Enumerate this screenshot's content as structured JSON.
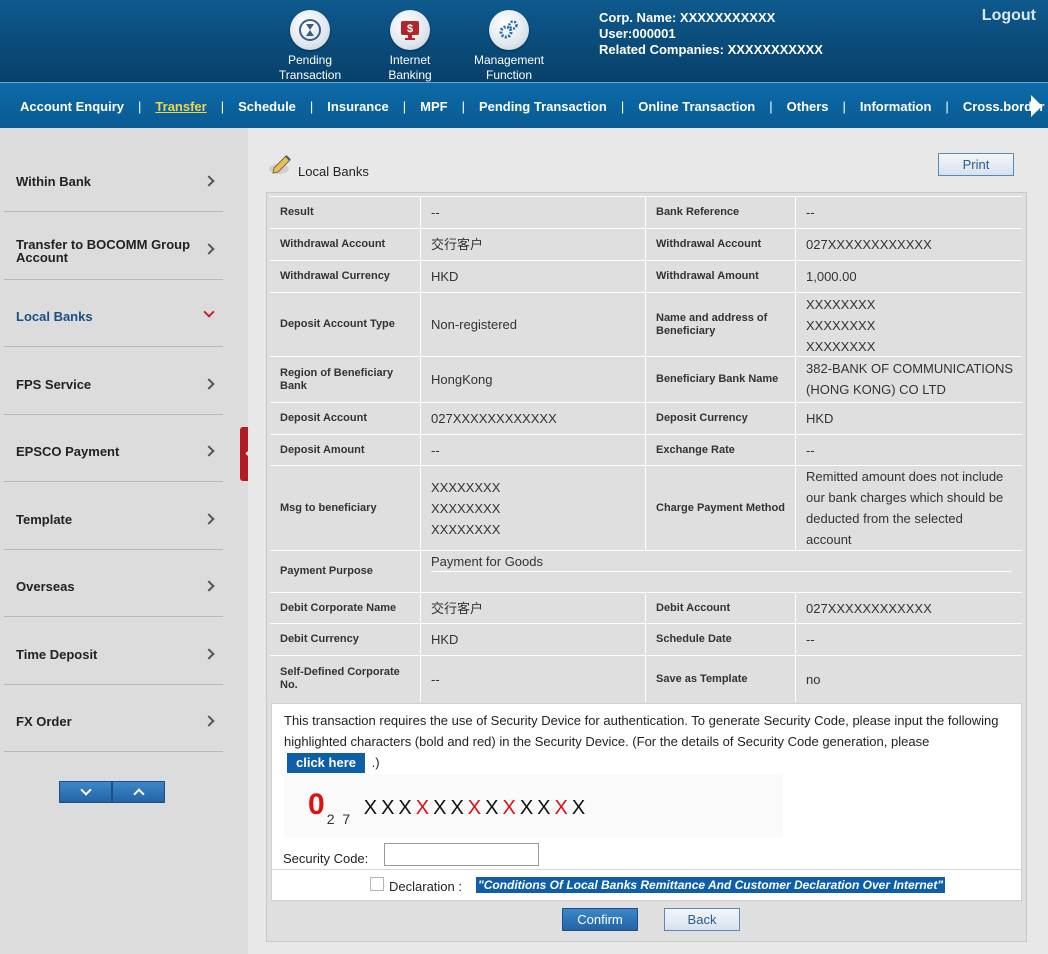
{
  "header": {
    "icons": [
      {
        "label_1": "Pending",
        "label_2": "Transaction",
        "icon": "hourglass-icon"
      },
      {
        "label_1": "Internet",
        "label_2": "Banking",
        "icon": "monitor-dollar-icon"
      },
      {
        "label_1": "Management",
        "label_2": "Function",
        "icon": "gears-icon"
      }
    ],
    "corp_name": "Corp. Name: XXXXXXXXXXX",
    "user": "User:000001",
    "related": "Related Companies: XXXXXXXXXXX",
    "logout": "Logout"
  },
  "nav": {
    "items": [
      "Account Enquiry",
      "Transfer",
      "Schedule",
      "Insurance",
      "MPF",
      "Pending Transaction",
      "Online Transaction",
      "Others",
      "Information",
      "Cross.border Acc"
    ],
    "active_index": 1
  },
  "sidebar": {
    "items": [
      "Within Bank",
      "Transfer to BOCOMM Group Account",
      "Local Banks",
      "FPS Service",
      "EPSCO Payment",
      "Template",
      "Overseas",
      "Time Deposit",
      "FX Order"
    ],
    "active_index": 2
  },
  "page": {
    "title": "Local Banks",
    "print": "Print"
  },
  "details": {
    "result_label": "Result",
    "result": "--",
    "bank_ref_label": "Bank Reference",
    "bank_ref": "--",
    "wd_account_label": "Withdrawal Account",
    "wd_account_name": "交行客户",
    "wd_account_label2": "Withdrawal Account",
    "wd_account_no": "027XXXXXXXXXXXX",
    "wd_currency_label": "Withdrawal Currency",
    "wd_currency": "HKD",
    "wd_amount_label": "Withdrawal Amount",
    "wd_amount": "1,000.00",
    "dep_type_label": "Deposit Account Type",
    "dep_type": "Non-registered",
    "beneficiary_label": "Name and address of Beneficiary",
    "beneficiary_lines": [
      "XXXXXXXX",
      "XXXXXXXX",
      "XXXXXXXX"
    ],
    "region_label": "Region of Beneficiary Bank",
    "region": "HongKong",
    "bene_bank_label": "Beneficiary Bank Name",
    "bene_bank_1": "382-BANK OF COMMUNICATIONS",
    "bene_bank_2": "(HONG KONG) CO LTD",
    "dep_account_label": "Deposit Account",
    "dep_account": "027XXXXXXXXXXXX",
    "dep_currency_label": "Deposit Currency",
    "dep_currency": "HKD",
    "dep_amount_label": "Deposit Amount",
    "dep_amount": "--",
    "fx_rate_label": "Exchange Rate",
    "fx_rate": "--",
    "msg_label": "Msg to beneficiary",
    "msg_lines": [
      "XXXXXXXX",
      "XXXXXXXX",
      "XXXXXXXX"
    ],
    "charge_label": "Charge Payment Method",
    "charge_lines": [
      "Remitted amount does not include",
      "our bank charges which should be",
      "deducted from the selected",
      "account"
    ],
    "purpose_label": "Payment Purpose",
    "purpose": "Payment for Goods",
    "debit_name_label": "Debit Corporate Name",
    "debit_name": "交行客户",
    "debit_account_label": "Debit Account",
    "debit_account": "027XXXXXXXXXXXX",
    "debit_currency_label": "Debit Currency",
    "debit_currency": "HKD",
    "schedule_label": "Schedule Date",
    "schedule": "--",
    "self_defined_label": "Self-Defined Corporate No.",
    "self_defined": "--",
    "save_template_label": "Save as Template",
    "save_template": "no"
  },
  "security": {
    "text_1": "This transaction requires the use of Security Device for authentication. To generate Security Code, please input the following highlighted characters (bold and red) in the Security Device. (For the details of Security Code generation, please",
    "click_here": "click here",
    "text_2": ".)",
    "code_big": "0",
    "code_sub": "2 7",
    "code_chars": [
      "X",
      "X",
      "X",
      "X",
      "X",
      "X",
      "X",
      "X",
      "X",
      "X",
      "X",
      "X",
      "X"
    ],
    "code_red": [
      false,
      false,
      false,
      true,
      false,
      false,
      true,
      false,
      true,
      false,
      false,
      true,
      false
    ],
    "code_label": "Security Code:",
    "code_value": "",
    "declaration_label": "Declaration :",
    "declaration_link": "\"Conditions Of Local Banks Remittance And Customer Declaration Over Internet\""
  },
  "buttons": {
    "confirm": "Confirm",
    "back": "Back"
  },
  "colors": {
    "header_bg": "#0a4a78",
    "nav_bg": "#0c6aa8",
    "active_nav": "#f3d54a",
    "accent_red": "#e01010",
    "link_bg": "#0f5ea8"
  }
}
